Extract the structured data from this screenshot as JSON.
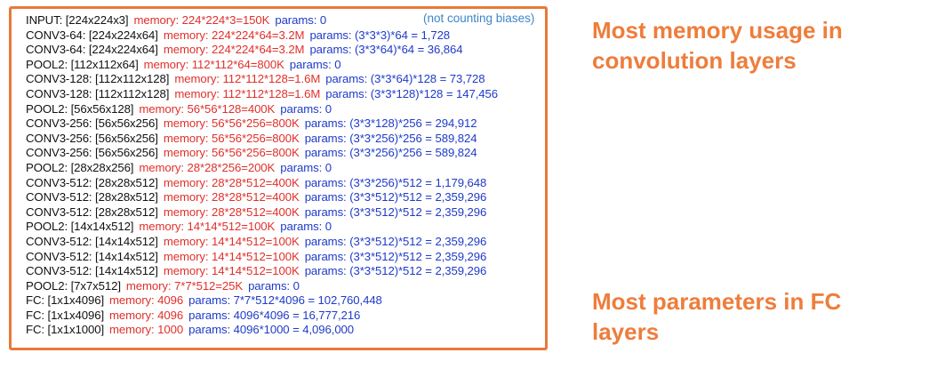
{
  "note": "(not counting biases)",
  "layers": [
    {
      "layer": "INPUT: [224x224x3]",
      "memory": "memory:  224*224*3=150K",
      "params": "params: 0"
    },
    {
      "layer": "CONV3-64: [224x224x64]",
      "memory": "memory:  224*224*64=3.2M",
      "params": "params: (3*3*3)*64 = 1,728"
    },
    {
      "layer": "CONV3-64: [224x224x64]",
      "memory": "memory:  224*224*64=3.2M",
      "params": "params: (3*3*64)*64 = 36,864"
    },
    {
      "layer": "POOL2: [112x112x64]",
      "memory": "memory:  112*112*64=800K",
      "params": "params: 0"
    },
    {
      "layer": "CONV3-128: [112x112x128]",
      "memory": "memory:  112*112*128=1.6M",
      "params": "params: (3*3*64)*128 = 73,728"
    },
    {
      "layer": "CONV3-128: [112x112x128]",
      "memory": "memory:  112*112*128=1.6M",
      "params": "params: (3*3*128)*128 = 147,456"
    },
    {
      "layer": "POOL2: [56x56x128]",
      "memory": "memory:  56*56*128=400K",
      "params": "params: 0"
    },
    {
      "layer": "CONV3-256: [56x56x256]",
      "memory": "memory:  56*56*256=800K",
      "params": "params: (3*3*128)*256 = 294,912"
    },
    {
      "layer": "CONV3-256: [56x56x256]",
      "memory": "memory:  56*56*256=800K",
      "params": "params: (3*3*256)*256 = 589,824"
    },
    {
      "layer": "CONV3-256: [56x56x256]",
      "memory": "memory:  56*56*256=800K",
      "params": "params: (3*3*256)*256 = 589,824"
    },
    {
      "layer": "POOL2: [28x28x256]",
      "memory": "memory:  28*28*256=200K",
      "params": "params: 0"
    },
    {
      "layer": "CONV3-512: [28x28x512]",
      "memory": "memory:  28*28*512=400K",
      "params": "params: (3*3*256)*512 = 1,179,648"
    },
    {
      "layer": "CONV3-512: [28x28x512]",
      "memory": "memory:  28*28*512=400K",
      "params": "params: (3*3*512)*512 = 2,359,296"
    },
    {
      "layer": "CONV3-512: [28x28x512]",
      "memory": "memory:  28*28*512=400K",
      "params": "params: (3*3*512)*512 = 2,359,296"
    },
    {
      "layer": "POOL2: [14x14x512]",
      "memory": "memory:  14*14*512=100K",
      "params": "params: 0"
    },
    {
      "layer": "CONV3-512: [14x14x512]",
      "memory": "memory:  14*14*512=100K",
      "params": "params: (3*3*512)*512 = 2,359,296"
    },
    {
      "layer": "CONV3-512: [14x14x512]",
      "memory": "memory:  14*14*512=100K",
      "params": "params: (3*3*512)*512 = 2,359,296"
    },
    {
      "layer": "CONV3-512: [14x14x512]",
      "memory": "memory:  14*14*512=100K",
      "params": "params: (3*3*512)*512 = 2,359,296"
    },
    {
      "layer": "POOL2: [7x7x512]",
      "memory": "memory:  7*7*512=25K",
      "params": "params: 0"
    },
    {
      "layer": "FC: [1x1x4096]",
      "memory": "memory:  4096",
      "params": "params: 7*7*512*4096 = 102,760,448"
    },
    {
      "layer": "FC: [1x1x4096]",
      "memory": "memory:  4096",
      "params": "params: 4096*4096 = 16,777,216"
    },
    {
      "layer": "FC: [1x1x1000]",
      "memory": "memory:  1000",
      "params": "params: 4096*1000 = 4,096,000"
    }
  ],
  "callouts": {
    "memory": [
      "Most memory usage in",
      "convolution layers"
    ],
    "params": [
      "Most parameters in FC",
      "layers"
    ]
  },
  "colors": {
    "border": "#e8793a",
    "callout": "#ee7d3b",
    "memory": "#e0302a",
    "params": "#1f3bc8",
    "note": "#3f85c8"
  }
}
